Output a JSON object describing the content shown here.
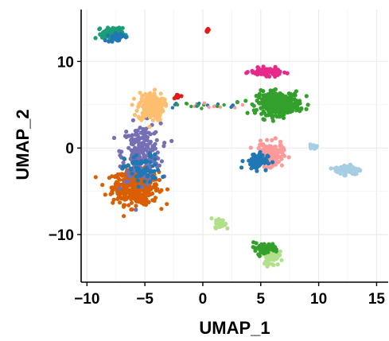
{
  "chart_data": {
    "type": "scatter",
    "title": "",
    "xlabel": "UMAP_1",
    "ylabel": "UMAP_2",
    "xlim": [
      -10.5,
      16
    ],
    "ylim": [
      -15.5,
      16
    ],
    "xticks": [
      -10,
      -5,
      0,
      5,
      10,
      15
    ],
    "yticks": [
      -10,
      0,
      10
    ],
    "xtick_labels": [
      "−10",
      "−5",
      "0",
      "5",
      "10",
      "15"
    ],
    "ytick_labels": [
      "−10",
      "0",
      "10"
    ],
    "grid": true,
    "legend": "none",
    "clusters": [
      {
        "color": "#d95f02",
        "center": [
          -5.8,
          -4.5
        ],
        "spread": [
          1.8,
          1.8
        ],
        "n": 420
      },
      {
        "color": "#7570b3",
        "center": [
          -5.3,
          -0.5
        ],
        "spread": [
          1.5,
          3.0
        ],
        "n": 230
      },
      {
        "color": "#fdbf6f",
        "center": [
          -4.5,
          4.8
        ],
        "spread": [
          1.0,
          1.5
        ],
        "n": 170
      },
      {
        "color": "#1f78b4",
        "center": [
          -5.2,
          -2.5
        ],
        "spread": [
          1.4,
          1.6
        ],
        "n": 70
      },
      {
        "color": "#33a02c",
        "center": [
          6.5,
          5.2
        ],
        "spread": [
          1.7,
          1.2
        ],
        "n": 300
      },
      {
        "color": "#e7298a",
        "center": [
          5.5,
          8.8
        ],
        "spread": [
          1.2,
          0.4
        ],
        "n": 90
      },
      {
        "color": "#fb9a99",
        "center": [
          5.8,
          -0.8
        ],
        "spread": [
          1.0,
          1.2
        ],
        "n": 170
      },
      {
        "color": "#1f78b4",
        "center": [
          4.6,
          -1.5
        ],
        "spread": [
          0.9,
          0.9
        ],
        "n": 70
      },
      {
        "color": "#1b9e77",
        "center": [
          -7.8,
          13.2
        ],
        "spread": [
          0.8,
          0.6
        ],
        "n": 130
      },
      {
        "color": "#a6cee3",
        "center": [
          12.5,
          -2.5
        ],
        "spread": [
          1.0,
          0.5
        ],
        "n": 100
      },
      {
        "color": "#a6cee3",
        "center": [
          9.6,
          0.2
        ],
        "spread": [
          0.3,
          0.2
        ],
        "n": 15
      },
      {
        "color": "#b2df8a",
        "center": [
          1.5,
          -8.7
        ],
        "spread": [
          0.4,
          0.5
        ],
        "n": 45
      },
      {
        "color": "#b2df8a",
        "center": [
          5.9,
          -12.5
        ],
        "spread": [
          0.6,
          1.0
        ],
        "n": 70
      },
      {
        "color": "#33a02c",
        "center": [
          5.3,
          -11.6
        ],
        "spread": [
          1.2,
          0.6
        ],
        "n": 45
      },
      {
        "color": "#e31a1c",
        "center": [
          0.4,
          13.6
        ],
        "spread": [
          0.15,
          0.2
        ],
        "n": 10
      },
      {
        "color": "#e31a1c",
        "center": [
          -2.2,
          6.0
        ],
        "spread": [
          0.3,
          0.2
        ],
        "n": 12
      },
      {
        "color": "#1f78b4",
        "center": [
          -7.5,
          12.8
        ],
        "spread": [
          0.6,
          0.5
        ],
        "n": 30
      }
    ],
    "bridge": {
      "from": [
        -2.5,
        5.0
      ],
      "to": [
        3.5,
        4.8
      ],
      "colors": [
        "#33a02c",
        "#fb9a99",
        "#1f78b4"
      ],
      "n": 30
    }
  }
}
